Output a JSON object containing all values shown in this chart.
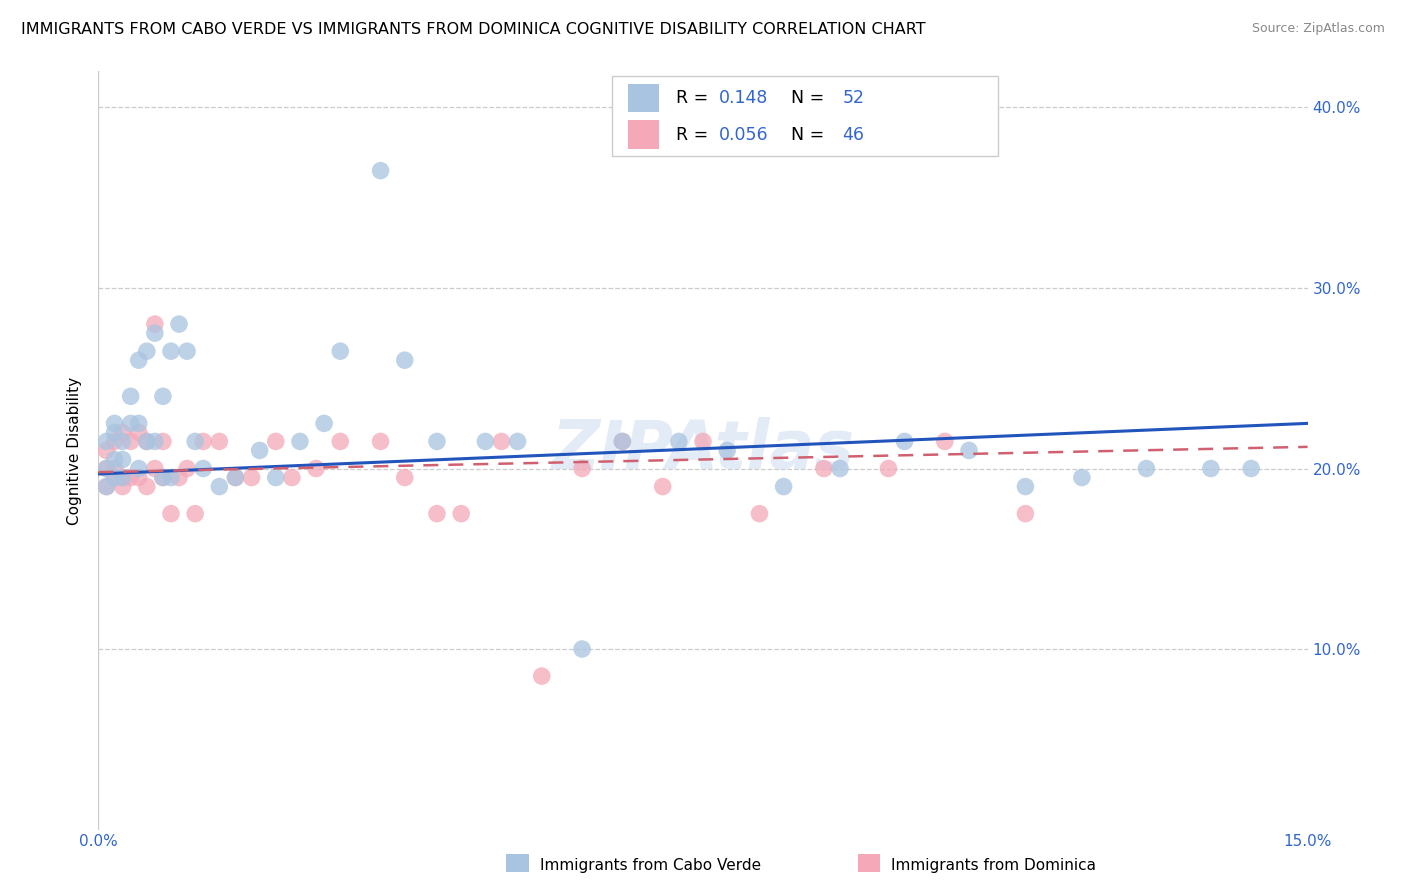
{
  "title": "IMMIGRANTS FROM CABO VERDE VS IMMIGRANTS FROM DOMINICA COGNITIVE DISABILITY CORRELATION CHART",
  "source": "Source: ZipAtlas.com",
  "ylabel": "Cognitive Disability",
  "xlim": [
    0.0,
    0.15
  ],
  "ylim": [
    0.0,
    0.42
  ],
  "xtick_positions": [
    0.0,
    0.03,
    0.06,
    0.09,
    0.12,
    0.15
  ],
  "xtick_labels": [
    "0.0%",
    "",
    "",
    "",
    "",
    "15.0%"
  ],
  "ytick_positions": [
    0.1,
    0.2,
    0.3,
    0.4
  ],
  "ytick_labels": [
    "10.0%",
    "20.0%",
    "30.0%",
    "40.0%"
  ],
  "cabo_verde_R": 0.148,
  "cabo_verde_N": 52,
  "dominica_R": 0.056,
  "dominica_N": 46,
  "cabo_verde_color": "#a8c4e0",
  "dominica_color": "#f4a8b8",
  "cabo_verde_line_color": "#2255bb",
  "dominica_line_color": "#d06070",
  "watermark": "ZIPAtlas",
  "legend_label1": "R =  0.148    N = 52",
  "legend_label2": "R =  0.056    N = 46",
  "bottom_label1": "Immigrants from Cabo Verde",
  "bottom_label2": "Immigrants from Dominica",
  "cabo_verde_x": [
    0.001,
    0.001,
    0.001,
    0.002,
    0.002,
    0.002,
    0.002,
    0.003,
    0.003,
    0.003,
    0.004,
    0.004,
    0.005,
    0.005,
    0.005,
    0.006,
    0.006,
    0.007,
    0.007,
    0.008,
    0.008,
    0.009,
    0.009,
    0.01,
    0.011,
    0.012,
    0.013,
    0.015,
    0.017,
    0.02,
    0.022,
    0.025,
    0.028,
    0.03,
    0.035,
    0.038,
    0.042,
    0.048,
    0.052,
    0.06,
    0.065,
    0.072,
    0.078,
    0.085,
    0.092,
    0.1,
    0.108,
    0.115,
    0.122,
    0.13,
    0.138,
    0.143
  ],
  "cabo_verde_y": [
    0.2,
    0.215,
    0.19,
    0.205,
    0.22,
    0.195,
    0.225,
    0.215,
    0.205,
    0.195,
    0.24,
    0.225,
    0.26,
    0.225,
    0.2,
    0.265,
    0.215,
    0.275,
    0.215,
    0.24,
    0.195,
    0.265,
    0.195,
    0.28,
    0.265,
    0.215,
    0.2,
    0.19,
    0.195,
    0.21,
    0.195,
    0.215,
    0.225,
    0.265,
    0.365,
    0.26,
    0.215,
    0.215,
    0.215,
    0.1,
    0.215,
    0.215,
    0.21,
    0.19,
    0.2,
    0.215,
    0.21,
    0.19,
    0.195,
    0.2,
    0.2,
    0.2
  ],
  "dominica_x": [
    0.001,
    0.001,
    0.001,
    0.002,
    0.002,
    0.002,
    0.003,
    0.003,
    0.003,
    0.004,
    0.004,
    0.005,
    0.005,
    0.006,
    0.006,
    0.007,
    0.007,
    0.008,
    0.008,
    0.009,
    0.01,
    0.011,
    0.012,
    0.013,
    0.015,
    0.017,
    0.019,
    0.022,
    0.024,
    0.027,
    0.03,
    0.035,
    0.038,
    0.042,
    0.045,
    0.05,
    0.055,
    0.06,
    0.065,
    0.07,
    0.075,
    0.082,
    0.09,
    0.098,
    0.105,
    0.115
  ],
  "dominica_y": [
    0.2,
    0.21,
    0.19,
    0.215,
    0.2,
    0.195,
    0.22,
    0.195,
    0.19,
    0.215,
    0.195,
    0.22,
    0.195,
    0.215,
    0.19,
    0.2,
    0.28,
    0.215,
    0.195,
    0.175,
    0.195,
    0.2,
    0.175,
    0.215,
    0.215,
    0.195,
    0.195,
    0.215,
    0.195,
    0.2,
    0.215,
    0.215,
    0.195,
    0.175,
    0.175,
    0.215,
    0.085,
    0.2,
    0.215,
    0.19,
    0.215,
    0.175,
    0.2,
    0.2,
    0.215,
    0.175
  ]
}
